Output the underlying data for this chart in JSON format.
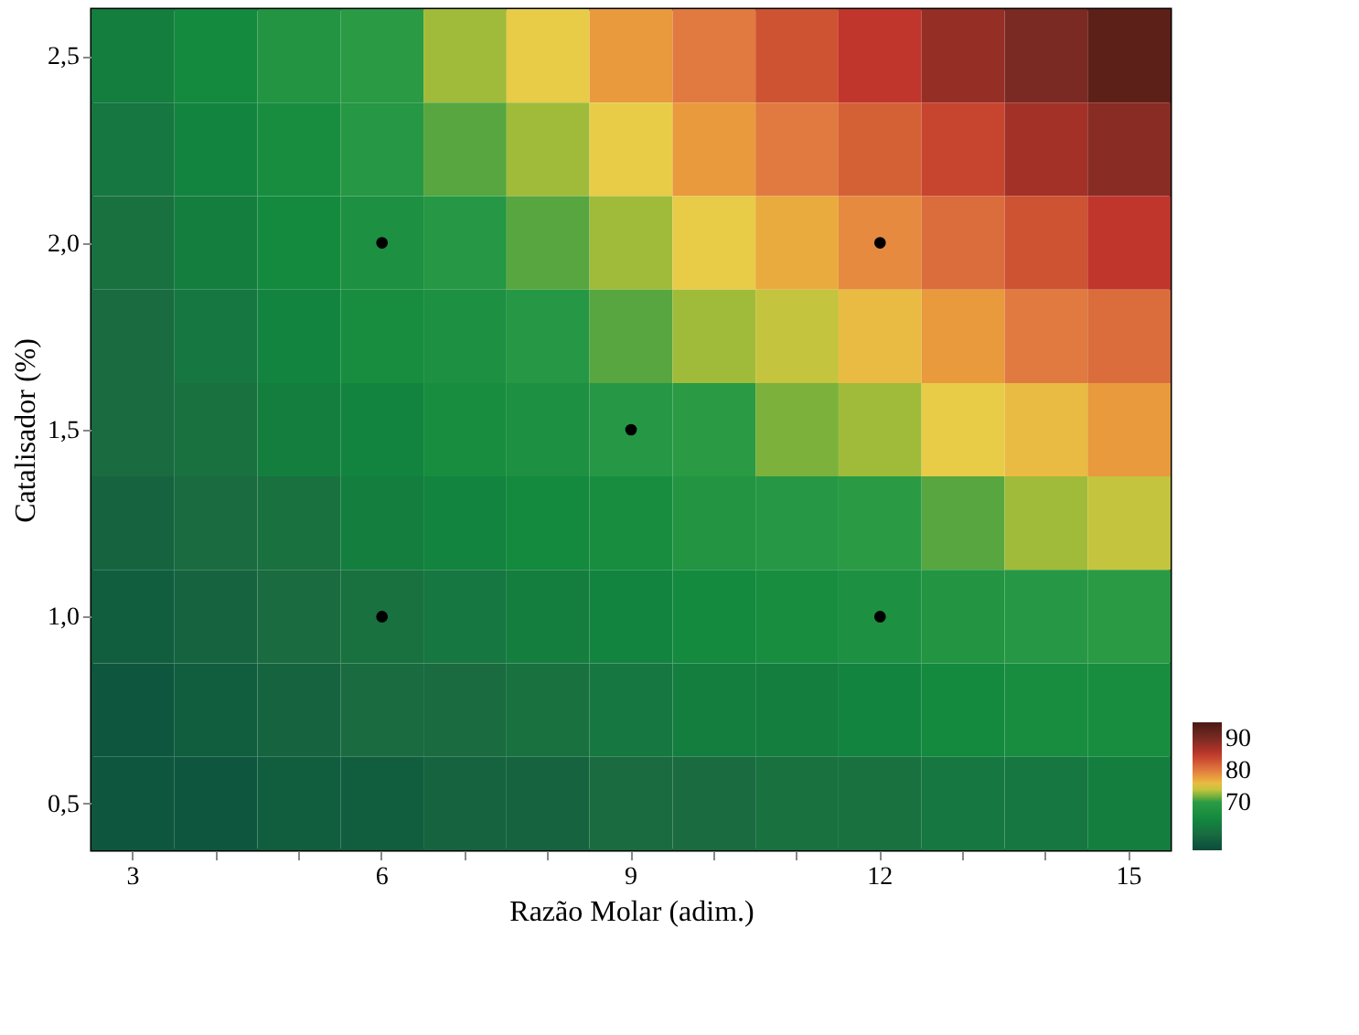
{
  "chart_data": {
    "type": "heatmap",
    "xlabel": "Razão Molar (adim.)",
    "ylabel": "Catalisador (%)",
    "categories": [
      "3",
      null,
      null,
      "6",
      null,
      null,
      "9",
      null,
      null,
      "12",
      null,
      null,
      "15"
    ],
    "ylim": [
      0.375,
      2.625
    ],
    "yticks": [
      {
        "value": 0.5,
        "label": "0,5"
      },
      {
        "value": 1.0,
        "label": "1,0"
      },
      {
        "value": 1.5,
        "label": "1,5"
      },
      {
        "value": 2.0,
        "label": "2,0"
      },
      {
        "value": 2.5,
        "label": "2,5"
      }
    ],
    "cells": [
      [
        63,
        65,
        68,
        70,
        73,
        75,
        78,
        80,
        83,
        85,
        88,
        90,
        93
      ],
      [
        62,
        64,
        66,
        69,
        71,
        73,
        75,
        78,
        80,
        82,
        84,
        87,
        89
      ],
      [
        61,
        63,
        65,
        67,
        69,
        71,
        73,
        75,
        77,
        79,
        81,
        83,
        85
      ],
      [
        60,
        62,
        64,
        66,
        67,
        69,
        71,
        73,
        74,
        76,
        78,
        80,
        81
      ],
      [
        60,
        61,
        63,
        64,
        66,
        67,
        69,
        70,
        72,
        73,
        75,
        76,
        78
      ],
      [
        59,
        60,
        61,
        63,
        64,
        65,
        66,
        68,
        69,
        70,
        71,
        73,
        74
      ],
      [
        58,
        59,
        60,
        61,
        62,
        63,
        64,
        65,
        66,
        67,
        68,
        69,
        70
      ],
      [
        57,
        58,
        59,
        60,
        60,
        61,
        62,
        63,
        63,
        64,
        65,
        66,
        66
      ],
      [
        57,
        57,
        58,
        58,
        59,
        59,
        60,
        60,
        61,
        61,
        62,
        62,
        63
      ]
    ],
    "clim": [
      55,
      95
    ],
    "cticks": [
      70,
      80,
      90
    ],
    "colors": [
      "#0f4a3a",
      "#1a6b3f",
      "#138a3e",
      "#2a9a45",
      "#e8cc48",
      "#e07a40",
      "#c0352c",
      "#7a2a22",
      "#4a1a14"
    ],
    "series": [
      {
        "type": "scatter",
        "x": [
          "6",
          "6",
          "9",
          "12",
          "12"
        ],
        "values": [
          1.0,
          2.0,
          1.5,
          1.0,
          2.0
        ],
        "color": "#000000"
      }
    ]
  }
}
